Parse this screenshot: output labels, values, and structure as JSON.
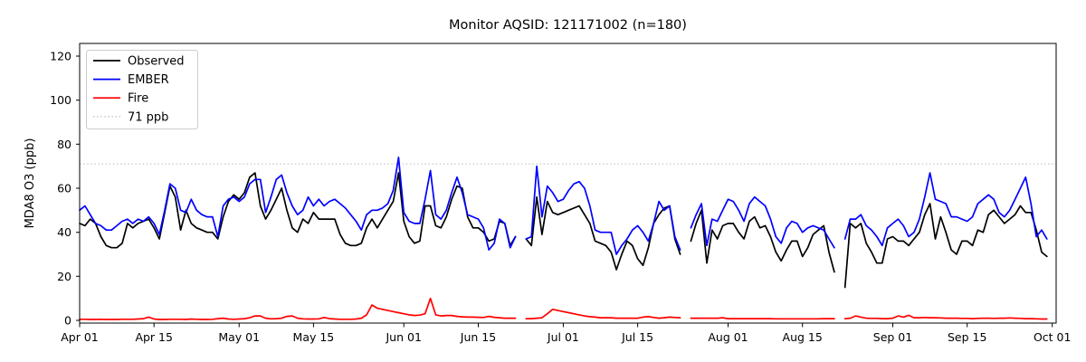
{
  "chart_data": {
    "type": "line",
    "title": "Monitor AQSID: 121171002 (n=180)",
    "ylabel": "MDA8 O3 (ppb)",
    "xlabel": "",
    "y_ticks": [
      0,
      20,
      40,
      60,
      80,
      100,
      120
    ],
    "ylim": [
      -2,
      126
    ],
    "grid": false,
    "legend_position": "upper left",
    "x_start_date": "Apr 01",
    "x_end_date": "Oct 01",
    "x_ticks": [
      {
        "label": "Apr 01",
        "day": 0
      },
      {
        "label": "Apr 15",
        "day": 14
      },
      {
        "label": "May 01",
        "day": 30
      },
      {
        "label": "May 15",
        "day": 44
      },
      {
        "label": "Jun 01",
        "day": 61
      },
      {
        "label": "Jun 15",
        "day": 75
      },
      {
        "label": "Jul 01",
        "day": 91
      },
      {
        "label": "Jul 15",
        "day": 105
      },
      {
        "label": "Aug 01",
        "day": 122
      },
      {
        "label": "Aug 15",
        "day": 136
      },
      {
        "label": "Sep 01",
        "day": 153
      },
      {
        "label": "Sep 15",
        "day": 167
      },
      {
        "label": "Oct 01",
        "day": 183
      }
    ],
    "threshold": {
      "value": 71,
      "label": "71 ppb",
      "color": "#cccccc"
    },
    "series": [
      {
        "name": "Observed",
        "color": "#000000",
        "values": [
          44,
          43,
          46,
          44,
          38,
          34,
          33,
          33,
          35,
          44,
          42,
          44,
          45,
          46,
          42,
          37,
          49,
          61,
          56,
          41,
          50,
          44,
          42,
          41,
          40,
          40,
          37,
          47,
          54,
          57,
          55,
          58,
          65,
          67,
          52,
          46,
          50,
          55,
          60,
          50,
          42,
          40,
          46,
          44,
          49,
          46,
          46,
          46,
          46,
          39,
          35,
          34,
          34,
          35,
          42,
          46,
          42,
          46,
          50,
          54,
          67,
          45,
          38,
          35,
          36,
          52,
          52,
          43,
          42,
          47,
          55,
          61,
          60,
          47,
          42,
          42,
          40,
          36,
          37,
          45,
          44,
          34,
          38,
          null,
          37,
          34,
          56,
          39,
          54,
          49,
          48,
          49,
          50,
          51,
          52,
          48,
          44,
          36,
          35,
          34,
          31,
          23,
          30,
          36,
          34,
          28,
          25,
          33,
          44,
          48,
          51,
          52,
          37,
          30,
          null,
          36,
          44,
          50,
          26,
          41,
          37,
          43,
          44,
          44,
          40,
          37,
          45,
          47,
          42,
          43,
          38,
          31,
          27,
          32,
          36,
          36,
          29,
          33,
          39,
          41,
          43,
          31,
          22,
          null,
          15,
          44,
          42,
          44,
          35,
          31,
          26,
          26,
          37,
          38,
          36,
          36,
          34,
          37,
          40,
          48,
          53,
          37,
          47,
          40,
          32,
          30,
          36,
          36,
          34,
          41,
          40,
          48,
          50,
          47,
          44,
          46,
          48,
          52,
          49,
          49,
          41,
          31,
          29
        ]
      },
      {
        "name": "EMBER",
        "color": "#0000ff",
        "values": [
          50,
          52,
          48,
          44,
          43,
          41,
          41,
          43,
          45,
          46,
          44,
          46,
          45,
          47,
          44,
          39,
          50,
          62,
          60,
          50,
          49,
          55,
          50,
          48,
          47,
          47,
          38,
          52,
          55,
          56,
          54,
          56,
          62,
          64,
          64,
          49,
          56,
          64,
          66,
          58,
          52,
          48,
          50,
          56,
          52,
          55,
          52,
          54,
          55,
          53,
          51,
          48,
          45,
          41,
          48,
          50,
          50,
          51,
          53,
          59,
          74,
          49,
          45,
          44,
          44,
          55,
          68,
          48,
          46,
          50,
          58,
          65,
          58,
          48,
          47,
          46,
          42,
          32,
          35,
          46,
          44,
          33,
          38,
          null,
          37,
          38,
          70,
          47,
          61,
          58,
          54,
          55,
          59,
          62,
          63,
          60,
          52,
          41,
          40,
          40,
          40,
          30,
          34,
          37,
          41,
          43,
          40,
          36,
          44,
          54,
          50,
          52,
          38,
          32,
          null,
          42,
          48,
          53,
          34,
          46,
          45,
          50,
          55,
          54,
          50,
          45,
          53,
          56,
          54,
          52,
          46,
          38,
          35,
          42,
          45,
          44,
          40,
          42,
          43,
          42,
          41,
          37,
          33,
          null,
          37,
          46,
          46,
          48,
          43,
          41,
          38,
          34,
          42,
          44,
          46,
          43,
          38,
          40,
          46,
          56,
          67,
          55,
          54,
          53,
          47,
          47,
          46,
          45,
          47,
          53,
          55,
          57,
          55,
          49,
          47,
          50,
          55,
          60,
          65,
          53,
          38,
          41,
          37
        ]
      },
      {
        "name": "Fire",
        "color": "#ff0000",
        "values": [
          0.5,
          0.5,
          0.4,
          0.4,
          0.5,
          0.4,
          0.4,
          0.4,
          0.5,
          0.5,
          0.5,
          0.6,
          0.8,
          1.5,
          0.6,
          0.4,
          0.4,
          0.5,
          0.5,
          0.5,
          0.4,
          0.6,
          0.5,
          0.4,
          0.4,
          0.5,
          0.8,
          1.0,
          0.6,
          0.5,
          0.6,
          0.8,
          1.2,
          2.0,
          2.0,
          1.0,
          0.7,
          0.8,
          1.0,
          1.8,
          2.0,
          1.0,
          0.7,
          0.6,
          0.6,
          0.7,
          1.3,
          0.8,
          0.6,
          0.5,
          0.5,
          0.5,
          0.6,
          1.0,
          2.5,
          7.0,
          5.5,
          5.0,
          4.5,
          4.0,
          3.5,
          3.0,
          2.5,
          2.2,
          2.4,
          3.0,
          10.0,
          2.5,
          2.0,
          2.2,
          2.2,
          1.8,
          1.6,
          1.5,
          1.5,
          1.4,
          1.3,
          1.8,
          1.4,
          1.2,
          1.0,
          1.0,
          1.0,
          null,
          0.8,
          0.8,
          1.0,
          1.2,
          3.0,
          5.0,
          4.5,
          4.0,
          3.5,
          3.0,
          2.5,
          2.0,
          1.7,
          1.5,
          1.2,
          1.2,
          1.2,
          1.0,
          1.0,
          1.0,
          1.0,
          1.0,
          1.5,
          1.7,
          1.3,
          1.0,
          1.2,
          1.5,
          1.3,
          1.2,
          null,
          1.0,
          1.0,
          1.0,
          1.0,
          1.0,
          1.0,
          1.2,
          0.8,
          0.8,
          0.8,
          0.8,
          0.8,
          0.8,
          0.8,
          0.8,
          0.8,
          0.7,
          0.7,
          0.7,
          0.7,
          0.7,
          0.7,
          0.7,
          0.7,
          0.7,
          0.8,
          0.8,
          0.8,
          null,
          0.8,
          1.0,
          2.0,
          1.5,
          1.0,
          0.9,
          0.9,
          0.8,
          0.8,
          1.0,
          2.0,
          1.5,
          2.3,
          1.2,
          1.2,
          1.3,
          1.2,
          1.2,
          1.1,
          1.0,
          1.0,
          1.0,
          0.9,
          0.9,
          0.8,
          0.9,
          1.0,
          1.0,
          0.9,
          1.0,
          1.0,
          1.1,
          1.0,
          0.9,
          0.8,
          0.8,
          0.7,
          0.6,
          0.6
        ]
      }
    ],
    "legend_entries": [
      "Observed",
      "EMBER",
      "Fire",
      "71 ppb"
    ]
  }
}
